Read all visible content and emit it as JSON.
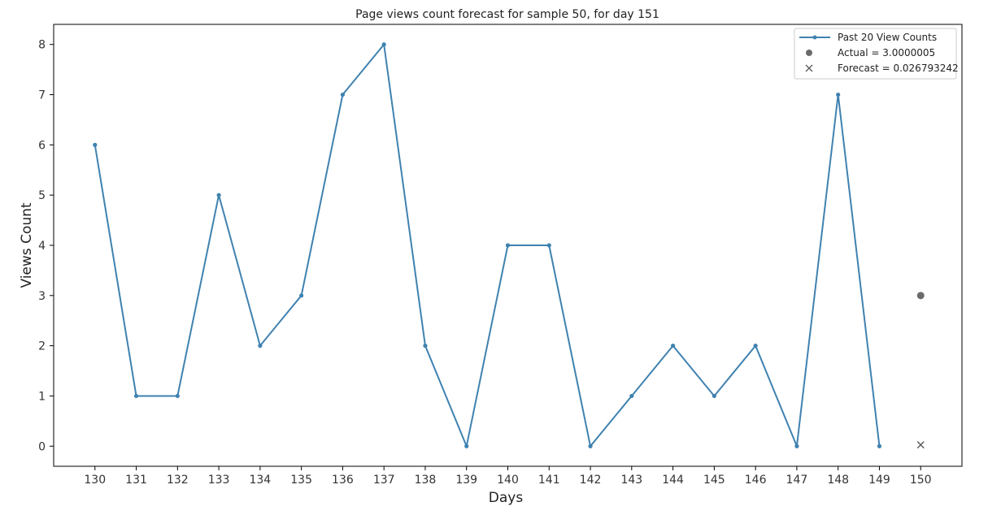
{
  "chart_data": {
    "type": "line",
    "title": "Page views count forecast for sample 50, for day 151",
    "xlabel": "Days",
    "ylabel": "Views Count",
    "xlim": [
      129,
      151
    ],
    "ylim": [
      -0.4,
      8.4
    ],
    "x_ticks": [
      130,
      131,
      132,
      133,
      134,
      135,
      136,
      137,
      138,
      139,
      140,
      141,
      142,
      143,
      144,
      145,
      146,
      147,
      148,
      149,
      150
    ],
    "y_ticks": [
      0,
      1,
      2,
      3,
      4,
      5,
      6,
      7,
      8
    ],
    "grid": false,
    "legend_position": "top-right",
    "series": [
      {
        "name": "Past 20 View Counts",
        "marker": "dot-line",
        "color": "#3f82b0",
        "x": [
          130,
          131,
          132,
          133,
          134,
          135,
          136,
          137,
          138,
          139,
          140,
          141,
          142,
          143,
          144,
          145,
          146,
          147,
          148,
          149
        ],
        "values": [
          6,
          1,
          1,
          5,
          2,
          3,
          7,
          8,
          2,
          0,
          4,
          4,
          0,
          1,
          2,
          1,
          2,
          0,
          7,
          0
        ]
      },
      {
        "name": "Actual = 3.0000005",
        "marker": "circle",
        "color": "#6b6b6b",
        "x": [
          150
        ],
        "values": [
          3.0000005
        ]
      },
      {
        "name": "Forecast = 0.026793242",
        "marker": "x",
        "color": "#5a5a5a",
        "x": [
          150
        ],
        "values": [
          0.026793242
        ]
      }
    ]
  }
}
